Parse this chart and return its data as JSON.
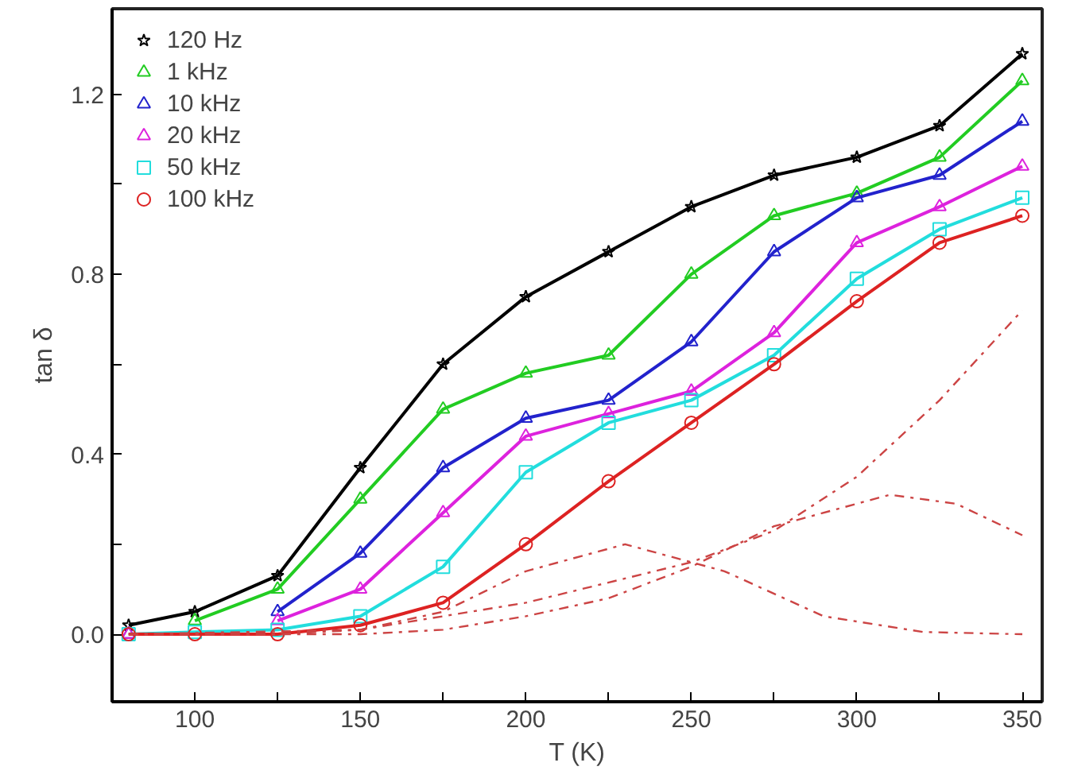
{
  "chart_data": {
    "type": "line",
    "xlabel": "T (K)",
    "ylabel": "tan δ",
    "xlim": [
      75,
      356
    ],
    "ylim": [
      -0.15,
      1.39
    ],
    "xticks": [
      100,
      {
        "value": 125,
        "label": null
      },
      150,
      {
        "value": 175,
        "label": null
      },
      200,
      {
        "value": 225,
        "label": null
      },
      250,
      {
        "value": 275,
        "label": null
      },
      300,
      {
        "value": 325,
        "label": null
      },
      350
    ],
    "yticks": [
      {
        "value": 0,
        "label": "0.0"
      },
      {
        "value": 0.2,
        "label": null
      },
      0.4,
      {
        "value": 0.6,
        "label": null
      },
      0.8,
      {
        "value": 1.0,
        "label": null
      },
      1.2
    ],
    "grid": false,
    "legend": "top left",
    "x": [
      80,
      100,
      125,
      150,
      175,
      200,
      225,
      250,
      275,
      300,
      325,
      350
    ],
    "series": [
      {
        "name": "120 Hz",
        "color": "#000000",
        "marker": "star",
        "values": [
          0.02,
          0.05,
          0.13,
          0.37,
          0.6,
          0.75,
          0.85,
          0.95,
          1.02,
          1.06,
          1.13,
          1.29
        ]
      },
      {
        "name": "1 kHz",
        "color": "#22cc22",
        "marker": "triangle",
        "values": [
          null,
          0.03,
          0.1,
          0.3,
          0.5,
          0.58,
          0.62,
          0.8,
          0.93,
          0.98,
          1.06,
          1.23
        ]
      },
      {
        "name": "10 kHz",
        "color": "#2222cc",
        "marker": "triangle",
        "values": [
          0.0,
          null,
          0.05,
          0.18,
          0.37,
          0.48,
          0.52,
          0.65,
          0.85,
          0.97,
          1.02,
          1.14
        ]
      },
      {
        "name": "20 kHz",
        "color": "#dd22dd",
        "marker": "triangle",
        "values": [
          0.0,
          null,
          0.03,
          0.1,
          0.27,
          0.44,
          0.49,
          0.54,
          0.67,
          0.87,
          0.95,
          1.04
        ]
      },
      {
        "name": "50 kHz",
        "color": "#22dddd",
        "marker": "square",
        "values": [
          0.0,
          0.005,
          0.01,
          0.04,
          0.15,
          0.36,
          0.47,
          0.52,
          0.62,
          0.79,
          0.9,
          0.97
        ]
      },
      {
        "name": "100 kHz",
        "color": "#dd2222",
        "marker": "circle",
        "values": [
          0.0,
          0.0,
          0.0,
          0.02,
          0.07,
          0.2,
          0.34,
          0.47,
          0.6,
          0.74,
          0.87,
          0.93
        ]
      },
      {
        "color": "#cc4444",
        "marker": "none",
        "line_style": "dashed",
        "x": [
          80,
          125,
          150,
          175,
          200,
          230,
          260,
          290,
          320,
          350
        ],
        "values": [
          0.0,
          0.0,
          0.01,
          0.05,
          0.14,
          0.2,
          0.14,
          0.04,
          0.005,
          0.0
        ]
      },
      {
        "color": "#cc4444",
        "marker": "none",
        "line_style": "dashed",
        "x": [
          80,
          150,
          175,
          200,
          225,
          250,
          275,
          310,
          330,
          350
        ],
        "values": [
          0.0,
          0.0,
          0.01,
          0.04,
          0.08,
          0.15,
          0.24,
          0.31,
          0.29,
          0.22
        ]
      },
      {
        "color": "#cc4444",
        "marker": "none",
        "line_style": "dashed",
        "x": [
          80,
          150,
          200,
          250,
          275,
          300,
          325,
          350
        ],
        "values": [
          0.0,
          0.01,
          0.07,
          0.16,
          0.23,
          0.35,
          0.52,
          0.72
        ]
      }
    ]
  }
}
